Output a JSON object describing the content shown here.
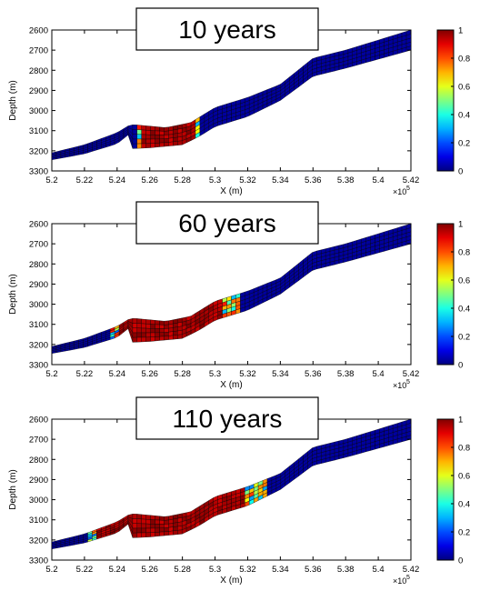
{
  "chart_data": [
    {
      "type": "heatmap",
      "title": "10 years",
      "xlabel": "X (m)",
      "ylabel": "Depth (m)",
      "xlim": [
        5.2,
        5.42
      ],
      "ylim": [
        3300,
        2600
      ],
      "x_ticks": [
        "5.2",
        "5.22",
        "5.24",
        "5.26",
        "5.28",
        "5.3",
        "5.32",
        "5.34",
        "5.36",
        "5.38",
        "5.4",
        "5.42"
      ],
      "y_ticks": [
        "2600",
        "2700",
        "2800",
        "2900",
        "3000",
        "3100",
        "3200",
        "3300"
      ],
      "x_exponent_label": "×10",
      "x_exponent_power": "5",
      "colorbar_ticks": [
        "0",
        "0.2",
        "0.4",
        "0.6",
        "0.8",
        "1"
      ],
      "colorbar_range": [
        0,
        1
      ],
      "colormap": "jet",
      "grid": false,
      "saturated_region": {
        "x_start": 5.252,
        "x_end": 5.292,
        "front_x": 5.292
      },
      "geometry_note": "curved reservoir layer; fault offset near x=5.247",
      "layer_top": [
        [
          5.2,
          3210
        ],
        [
          5.22,
          3170
        ],
        [
          5.24,
          3110
        ],
        [
          5.247,
          3075
        ],
        [
          5.25,
          3070
        ],
        [
          5.27,
          3085
        ],
        [
          5.285,
          3060
        ],
        [
          5.3,
          2985
        ],
        [
          5.32,
          2935
        ],
        [
          5.34,
          2870
        ],
        [
          5.36,
          2740
        ],
        [
          5.38,
          2700
        ],
        [
          5.42,
          2600
        ]
      ],
      "layer_bottom": [
        [
          5.2,
          3245
        ],
        [
          5.22,
          3215
        ],
        [
          5.24,
          3165
        ],
        [
          5.247,
          3120
        ],
        [
          5.2472,
          3190
        ],
        [
          5.26,
          3185
        ],
        [
          5.28,
          3170
        ],
        [
          5.29,
          3130
        ],
        [
          5.3,
          3080
        ],
        [
          5.32,
          3030
        ],
        [
          5.34,
          2950
        ],
        [
          5.36,
          2830
        ],
        [
          5.38,
          2790
        ],
        [
          5.42,
          2700
        ]
      ]
    },
    {
      "type": "heatmap",
      "title": "60 years",
      "xlabel": "X (m)",
      "ylabel": "Depth (m)",
      "xlim": [
        5.2,
        5.42
      ],
      "ylim": [
        3300,
        2600
      ],
      "x_ticks": [
        "5.2",
        "5.22",
        "5.24",
        "5.26",
        "5.28",
        "5.3",
        "5.32",
        "5.34",
        "5.36",
        "5.38",
        "5.4",
        "5.42"
      ],
      "y_ticks": [
        "2600",
        "2700",
        "2800",
        "2900",
        "3000",
        "3100",
        "3200",
        "3300"
      ],
      "x_exponent_label": "×10",
      "x_exponent_power": "5",
      "colorbar_ticks": [
        "0",
        "0.2",
        "0.4",
        "0.6",
        "0.8",
        "1"
      ],
      "colorbar_range": [
        0,
        1
      ],
      "colormap": "jet",
      "grid": false,
      "saturated_region": {
        "x_start": 5.237,
        "x_end": 5.315,
        "front_x": 5.315
      },
      "geometry_note": "curved reservoir layer; fault offset near x=5.247",
      "layer_top": [
        [
          5.2,
          3210
        ],
        [
          5.22,
          3170
        ],
        [
          5.24,
          3110
        ],
        [
          5.247,
          3075
        ],
        [
          5.25,
          3070
        ],
        [
          5.27,
          3085
        ],
        [
          5.285,
          3060
        ],
        [
          5.3,
          2985
        ],
        [
          5.32,
          2935
        ],
        [
          5.34,
          2870
        ],
        [
          5.36,
          2740
        ],
        [
          5.38,
          2700
        ],
        [
          5.42,
          2600
        ]
      ],
      "layer_bottom": [
        [
          5.2,
          3245
        ],
        [
          5.22,
          3215
        ],
        [
          5.24,
          3165
        ],
        [
          5.247,
          3120
        ],
        [
          5.2472,
          3190
        ],
        [
          5.26,
          3185
        ],
        [
          5.28,
          3170
        ],
        [
          5.29,
          3130
        ],
        [
          5.3,
          3080
        ],
        [
          5.32,
          3030
        ],
        [
          5.34,
          2950
        ],
        [
          5.36,
          2830
        ],
        [
          5.38,
          2790
        ],
        [
          5.42,
          2700
        ]
      ]
    },
    {
      "type": "heatmap",
      "title": "110 years",
      "xlabel": "X (m)",
      "ylabel": "Depth (m)",
      "xlim": [
        5.2,
        5.42
      ],
      "ylim": [
        3300,
        2600
      ],
      "x_ticks": [
        "5.2",
        "5.22",
        "5.24",
        "5.26",
        "5.28",
        "5.3",
        "5.32",
        "5.34",
        "5.36",
        "5.38",
        "5.4",
        "5.42"
      ],
      "y_ticks": [
        "2600",
        "2700",
        "2800",
        "2900",
        "3000",
        "3100",
        "3200",
        "3300"
      ],
      "x_exponent_label": "×10",
      "x_exponent_power": "5",
      "colorbar_ticks": [
        "0",
        "0.2",
        "0.4",
        "0.6",
        "0.8",
        "1"
      ],
      "colorbar_range": [
        0,
        1
      ],
      "colormap": "jet",
      "grid": false,
      "saturated_region": {
        "x_start": 5.222,
        "x_end": 5.332,
        "front_x": 5.332
      },
      "geometry_note": "curved reservoir layer; fault offset near x=5.247",
      "layer_top": [
        [
          5.2,
          3210
        ],
        [
          5.22,
          3170
        ],
        [
          5.24,
          3110
        ],
        [
          5.247,
          3075
        ],
        [
          5.25,
          3070
        ],
        [
          5.27,
          3085
        ],
        [
          5.285,
          3060
        ],
        [
          5.3,
          2985
        ],
        [
          5.32,
          2935
        ],
        [
          5.34,
          2870
        ],
        [
          5.36,
          2740
        ],
        [
          5.38,
          2700
        ],
        [
          5.42,
          2600
        ]
      ],
      "layer_bottom": [
        [
          5.2,
          3245
        ],
        [
          5.22,
          3215
        ],
        [
          5.24,
          3165
        ],
        [
          5.247,
          3120
        ],
        [
          5.2472,
          3190
        ],
        [
          5.26,
          3185
        ],
        [
          5.28,
          3170
        ],
        [
          5.29,
          3130
        ],
        [
          5.3,
          3080
        ],
        [
          5.32,
          3030
        ],
        [
          5.34,
          2950
        ],
        [
          5.36,
          2830
        ],
        [
          5.38,
          2790
        ],
        [
          5.42,
          2700
        ]
      ]
    }
  ],
  "colors": {
    "background_cell": "#1f2f8f",
    "saturated_cell": "#e02020",
    "mesh_line": "#000000",
    "title_box_border": "#000000"
  }
}
